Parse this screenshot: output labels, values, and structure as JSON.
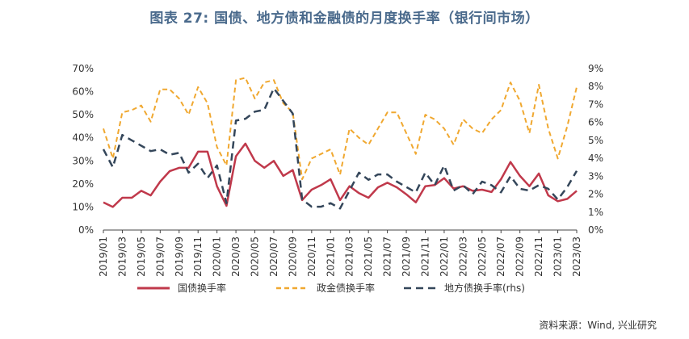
{
  "title": "图表 27: 国债、地方债和金融债的月度换手率（银行间市场）",
  "source": "资料来源：Wind, 兴业研究",
  "chart_data": {
    "type": "line",
    "title": "图表 27: 国债、地方债和金融债的月度换手率（银行间市场）",
    "x": [
      "2019/01",
      "2019/02",
      "2019/03",
      "2019/04",
      "2019/05",
      "2019/06",
      "2019/07",
      "2019/08",
      "2019/09",
      "2019/10",
      "2019/11",
      "2019/12",
      "2020/01",
      "2020/02",
      "2020/03",
      "2020/04",
      "2020/05",
      "2020/06",
      "2020/07",
      "2020/08",
      "2020/09",
      "2020/10",
      "2020/11",
      "2020/12",
      "2021/01",
      "2021/02",
      "2021/03",
      "2021/04",
      "2021/05",
      "2021/06",
      "2021/07",
      "2021/08",
      "2021/09",
      "2021/10",
      "2021/11",
      "2021/12",
      "2022/01",
      "2022/02",
      "2022/03",
      "2022/04",
      "2022/05",
      "2022/06",
      "2022/07",
      "2022/08",
      "2022/09",
      "2022/10",
      "2022/11",
      "2022/12",
      "2023/01",
      "2023/02",
      "2023/03"
    ],
    "xticks": [
      "2019/01",
      "2019/03",
      "2019/05",
      "2019/07",
      "2019/09",
      "2019/11",
      "2020/01",
      "2020/03",
      "2020/05",
      "2020/07",
      "2020/09",
      "2020/11",
      "2021/01",
      "2021/03",
      "2021/05",
      "2021/07",
      "2021/09",
      "2021/11",
      "2022/01",
      "2022/03",
      "2022/05",
      "2022/07",
      "2022/09",
      "2022/11",
      "2023/01",
      "2023/03"
    ],
    "y_left": {
      "ylim": [
        0,
        70
      ],
      "ticks": [
        "0%",
        "10%",
        "20%",
        "30%",
        "40%",
        "50%",
        "60%",
        "70%"
      ]
    },
    "y_right": {
      "ylim": [
        0,
        9
      ],
      "ticks": [
        "0%",
        "1%",
        "2%",
        "3%",
        "4%",
        "5%",
        "6%",
        "7%",
        "8%",
        "9%"
      ]
    },
    "series": [
      {
        "name": "国债换手率",
        "axis": "left",
        "color": "#c0394b",
        "style": "solid",
        "values": [
          12,
          10,
          14,
          14,
          17,
          15,
          21,
          25.5,
          27,
          27,
          34,
          34,
          19,
          10.5,
          32,
          37.5,
          30,
          27,
          30,
          23.5,
          26,
          13,
          17.5,
          19.5,
          22,
          13,
          19,
          16,
          14,
          18.5,
          20.5,
          18.5,
          15.5,
          12,
          19,
          19.5,
          22.5,
          18,
          19,
          17,
          17.5,
          16.5,
          22,
          29.5,
          23.5,
          19,
          24.5,
          15,
          12.5,
          13.5,
          17
        ]
      },
      {
        "name": "政金债换手率",
        "axis": "left",
        "color": "#f0a830",
        "style": "dashed",
        "values": [
          44,
          31,
          51,
          52,
          54,
          47,
          61,
          61,
          57,
          50,
          62,
          55,
          36,
          28,
          65,
          66,
          57,
          64,
          65,
          55,
          51,
          22,
          31,
          33,
          35,
          24,
          44,
          40,
          37,
          44,
          51,
          51,
          42,
          33,
          50,
          48,
          44,
          37,
          48,
          44,
          42,
          48,
          52,
          64,
          56,
          42,
          63,
          44,
          31,
          45,
          62
        ]
      },
      {
        "name": "地方债换手率(rhs)",
        "axis": "right",
        "color": "#34465a",
        "style": "dashed",
        "values": [
          4.5,
          3.5,
          5.3,
          5,
          4.7,
          4.4,
          4.5,
          4.2,
          4.3,
          3.2,
          3.7,
          2.9,
          3.6,
          1.5,
          6.1,
          6.2,
          6.6,
          6.7,
          7.9,
          7.2,
          6.5,
          1.7,
          1.3,
          1.3,
          1.5,
          1.2,
          2.2,
          3.2,
          2.8,
          3.1,
          3.1,
          2.7,
          2.4,
          2.1,
          3.2,
          2.5,
          3.6,
          2.2,
          2.5,
          2,
          2.7,
          2.5,
          2.1,
          3.0,
          2.3,
          2.2,
          2.5,
          2.3,
          1.7,
          2.4,
          3.3
        ]
      }
    ],
    "legend_position": "bottom",
    "grid": false
  }
}
